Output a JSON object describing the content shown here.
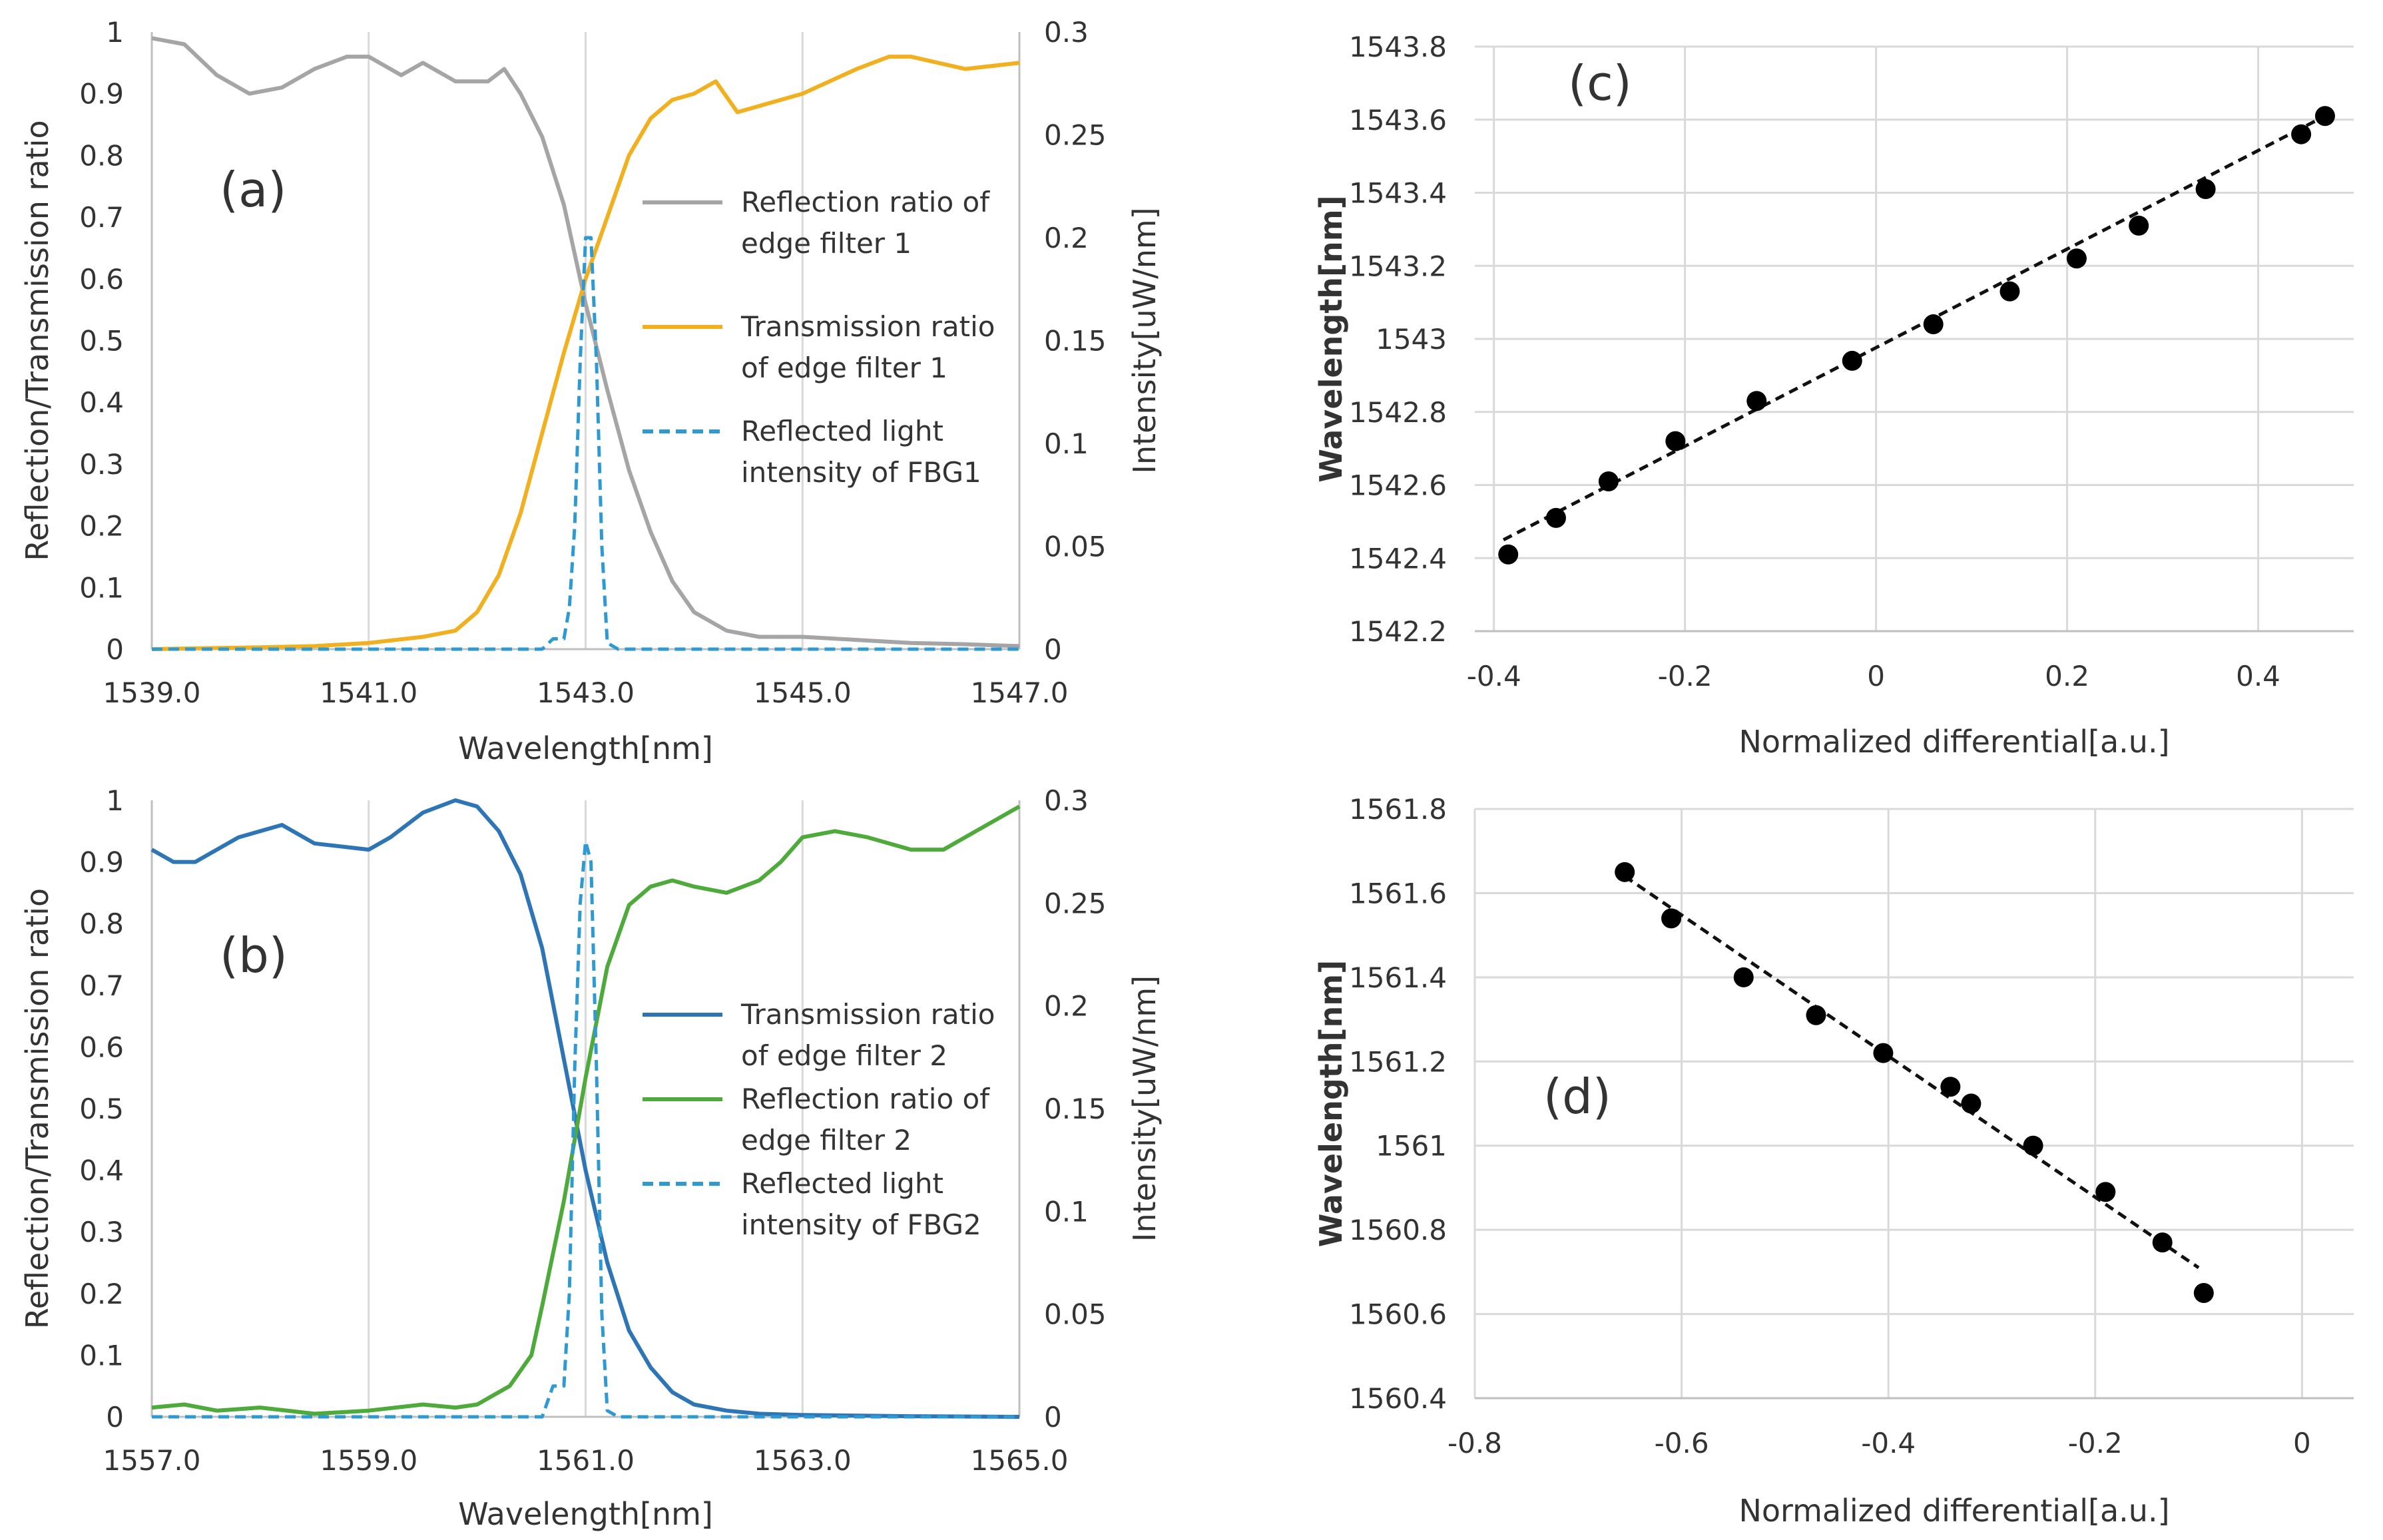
{
  "chart_data": [
    {
      "panel": "a",
      "type": "line",
      "label": "(a)",
      "xlabel": "Wavelength[nm]",
      "ylabel": "Reflection/Transmission ratio",
      "y2label": "Intensity[uW/nm]",
      "xlim": [
        1539.0,
        1547.0
      ],
      "ylim": [
        0,
        1
      ],
      "y2lim": [
        0,
        0.3
      ],
      "xticks": [
        "1539.0",
        "1541.0",
        "1543.0",
        "1545.0",
        "1547.0"
      ],
      "yticks": [
        "0",
        "0.1",
        "0.2",
        "0.3",
        "0.4",
        "0.5",
        "0.6",
        "0.7",
        "0.8",
        "0.9",
        "1"
      ],
      "y2ticks": [
        "0",
        "0.05",
        "0.1",
        "0.15",
        "0.2",
        "0.25",
        "0.3"
      ],
      "legend_position": "right-center",
      "series": [
        {
          "name": "Reflection ratio of edge filter 1",
          "legend_lines": [
            "Reflection ratio of",
            "edge filter 1"
          ],
          "axis": "left",
          "color": "#a5a5a5",
          "dash": "solid",
          "x": [
            1539.0,
            1539.3,
            1539.6,
            1539.9,
            1540.2,
            1540.5,
            1540.8,
            1541.0,
            1541.2,
            1541.3,
            1541.5,
            1541.8,
            1542.1,
            1542.25,
            1542.4,
            1542.6,
            1542.8,
            1543.0,
            1543.2,
            1543.4,
            1543.6,
            1543.8,
            1544.0,
            1544.3,
            1544.6,
            1545.0,
            1545.5,
            1546.0,
            1546.5,
            1547.0
          ],
          "values": [
            0.99,
            0.98,
            0.93,
            0.9,
            0.91,
            0.94,
            0.96,
            0.96,
            0.94,
            0.93,
            0.95,
            0.92,
            0.92,
            0.94,
            0.9,
            0.83,
            0.72,
            0.56,
            0.42,
            0.29,
            0.19,
            0.11,
            0.06,
            0.03,
            0.02,
            0.02,
            0.015,
            0.01,
            0.008,
            0.005
          ]
        },
        {
          "name": "Transmission ratio of edge filter 1",
          "legend_lines": [
            "Transmission ratio",
            "of edge filter 1"
          ],
          "axis": "left",
          "color": "#f0b020",
          "dash": "solid",
          "x": [
            1539.0,
            1540.0,
            1540.5,
            1541.0,
            1541.5,
            1541.8,
            1542.0,
            1542.2,
            1542.4,
            1542.6,
            1542.8,
            1543.0,
            1543.2,
            1543.4,
            1543.6,
            1543.8,
            1544.0,
            1544.2,
            1544.4,
            1544.6,
            1545.0,
            1545.5,
            1545.8,
            1546.0,
            1546.5,
            1547.0
          ],
          "values": [
            0.0,
            0.003,
            0.005,
            0.01,
            0.02,
            0.03,
            0.06,
            0.12,
            0.22,
            0.35,
            0.48,
            0.6,
            0.7,
            0.8,
            0.86,
            0.89,
            0.9,
            0.92,
            0.87,
            0.88,
            0.9,
            0.94,
            0.96,
            0.96,
            0.94,
            0.95
          ]
        },
        {
          "name": "Reflected light intensity of FBG1",
          "legend_lines": [
            "Reflected light",
            "intensity of FBG1"
          ],
          "axis": "right",
          "color": "#2f9ad2",
          "dash": "dashed",
          "x": [
            1539.0,
            1542.6,
            1542.7,
            1542.75,
            1542.8,
            1542.85,
            1542.9,
            1542.95,
            1543.0,
            1543.05,
            1543.1,
            1543.15,
            1543.2,
            1543.3,
            1547.0
          ],
          "values": [
            0.0,
            0.0,
            0.005,
            0.005,
            0.005,
            0.02,
            0.06,
            0.14,
            0.2,
            0.2,
            0.14,
            0.05,
            0.003,
            0.0,
            0.0
          ]
        }
      ]
    },
    {
      "panel": "b",
      "type": "line",
      "label": "(b)",
      "xlabel": "Wavelength[nm]",
      "ylabel": "Reflection/Transmission ratio",
      "y2label": "Intensity[uW/nm]",
      "xlim": [
        1557.0,
        1565.0
      ],
      "ylim": [
        0,
        1
      ],
      "y2lim": [
        0,
        0.3
      ],
      "xticks": [
        "1557.0",
        "1559.0",
        "1561.0",
        "1563.0",
        "1565.0"
      ],
      "yticks": [
        "0",
        "0.1",
        "0.2",
        "0.3",
        "0.4",
        "0.5",
        "0.6",
        "0.7",
        "0.8",
        "0.9",
        "1"
      ],
      "y2ticks": [
        "0",
        "0.05",
        "0.1",
        "0.15",
        "0.2",
        "0.25",
        "0.3"
      ],
      "legend_position": "right-center",
      "series": [
        {
          "name": "Transmission ratio of edge filter 2",
          "legend_lines": [
            "Transmission ratio",
            "of edge filter 2"
          ],
          "axis": "left",
          "color": "#2e75b6",
          "dash": "solid",
          "x": [
            1557.0,
            1557.2,
            1557.4,
            1557.8,
            1558.2,
            1558.5,
            1559.0,
            1559.2,
            1559.5,
            1559.8,
            1560.0,
            1560.2,
            1560.4,
            1560.6,
            1560.8,
            1561.0,
            1561.2,
            1561.4,
            1561.6,
            1561.8,
            1562.0,
            1562.3,
            1562.6,
            1563.0,
            1564.0,
            1565.0
          ],
          "values": [
            0.92,
            0.9,
            0.9,
            0.94,
            0.96,
            0.93,
            0.92,
            0.94,
            0.98,
            1.0,
            0.99,
            0.95,
            0.88,
            0.76,
            0.58,
            0.4,
            0.25,
            0.14,
            0.08,
            0.04,
            0.02,
            0.01,
            0.005,
            0.003,
            0.001,
            0.0
          ]
        },
        {
          "name": "Reflection ratio of edge filter 2",
          "legend_lines": [
            "Reflection ratio of",
            "edge filter 2"
          ],
          "axis": "left",
          "color": "#4eaa3a",
          "dash": "solid",
          "x": [
            1557.0,
            1557.3,
            1557.6,
            1558.0,
            1558.5,
            1559.0,
            1559.5,
            1559.8,
            1560.0,
            1560.3,
            1560.5,
            1560.6,
            1560.8,
            1561.0,
            1561.2,
            1561.4,
            1561.6,
            1561.8,
            1562.0,
            1562.3,
            1562.6,
            1562.8,
            1563.0,
            1563.3,
            1563.6,
            1564.0,
            1564.3,
            1564.6,
            1565.0
          ],
          "values": [
            0.015,
            0.02,
            0.01,
            0.015,
            0.005,
            0.01,
            0.02,
            0.015,
            0.02,
            0.05,
            0.1,
            0.18,
            0.35,
            0.55,
            0.73,
            0.83,
            0.86,
            0.87,
            0.86,
            0.85,
            0.87,
            0.9,
            0.94,
            0.95,
            0.94,
            0.92,
            0.92,
            0.95,
            0.99
          ]
        },
        {
          "name": "Reflected light intensity of FBG2",
          "legend_lines": [
            "Reflected light",
            "intensity of FBG2"
          ],
          "axis": "right",
          "color": "#2f9ad2",
          "dash": "dashed",
          "x": [
            1557.0,
            1560.6,
            1560.7,
            1560.75,
            1560.8,
            1560.85,
            1560.9,
            1560.95,
            1561.0,
            1561.05,
            1561.1,
            1561.15,
            1561.2,
            1561.3,
            1565.0
          ],
          "values": [
            0.0,
            0.0,
            0.015,
            0.015,
            0.015,
            0.06,
            0.17,
            0.25,
            0.28,
            0.27,
            0.17,
            0.05,
            0.003,
            0.0,
            0.0
          ]
        }
      ]
    },
    {
      "panel": "c",
      "type": "scatter",
      "label": "(c)",
      "xlabel": "Normalized differential[a.u.]",
      "ylabel": "Wavelength[nm]",
      "xlim": [
        -0.42,
        0.5
      ],
      "ylim": [
        1542.2,
        1543.8
      ],
      "xticks": [
        "-0.4",
        "-0.2",
        "0",
        "0.2",
        "0.4"
      ],
      "xtick_values": [
        -0.4,
        -0.2,
        0,
        0.2,
        0.4
      ],
      "yticks": [
        "1542.2",
        "1542.4",
        "1542.6",
        "1542.8",
        "1543",
        "1543.2",
        "1543.4",
        "1543.6",
        "1543.8"
      ],
      "ytick_values": [
        1542.2,
        1542.4,
        1542.6,
        1542.8,
        1543.0,
        1543.2,
        1543.4,
        1543.6,
        1543.8
      ],
      "trendline": {
        "x": [
          -0.39,
          0.47
        ],
        "y": [
          1542.45,
          1543.61
        ],
        "style": "dashed"
      },
      "x": [
        -0.385,
        -0.335,
        -0.28,
        -0.21,
        -0.125,
        -0.025,
        0.06,
        0.14,
        0.21,
        0.275,
        0.345,
        0.445,
        0.47
      ],
      "values": [
        1542.41,
        1542.51,
        1542.61,
        1542.72,
        1542.83,
        1542.94,
        1543.04,
        1543.13,
        1543.22,
        1543.31,
        1543.41,
        1543.56,
        1543.61
      ]
    },
    {
      "panel": "d",
      "type": "scatter",
      "label": "(d)",
      "xlabel": "Normalized differential[a.u.]",
      "ylabel": "Wavelength[nm]",
      "xlim": [
        -0.8,
        0.05
      ],
      "ylim": [
        1560.4,
        1561.8
      ],
      "xticks": [
        "-0.8",
        "-0.6",
        "-0.4",
        "-0.2",
        "0"
      ],
      "xtick_values": [
        -0.8,
        -0.6,
        -0.4,
        -0.2,
        0
      ],
      "yticks": [
        "1560.4",
        "1560.6",
        "1560.8",
        "1561",
        "1561.2",
        "1561.4",
        "1561.6",
        "1561.8"
      ],
      "ytick_values": [
        1560.4,
        1560.6,
        1560.8,
        1561.0,
        1561.2,
        1561.4,
        1561.6,
        1561.8
      ],
      "trendline": {
        "x": [
          -0.655,
          -0.1
        ],
        "y": [
          1561.64,
          1560.71
        ],
        "style": "dashed"
      },
      "x": [
        -0.655,
        -0.61,
        -0.54,
        -0.47,
        -0.405,
        -0.34,
        -0.32,
        -0.26,
        -0.19,
        -0.135,
        -0.095
      ],
      "values": [
        1561.65,
        1561.54,
        1561.4,
        1561.31,
        1561.22,
        1561.14,
        1561.1,
        1561.0,
        1560.89,
        1560.77,
        1560.65
      ]
    }
  ]
}
